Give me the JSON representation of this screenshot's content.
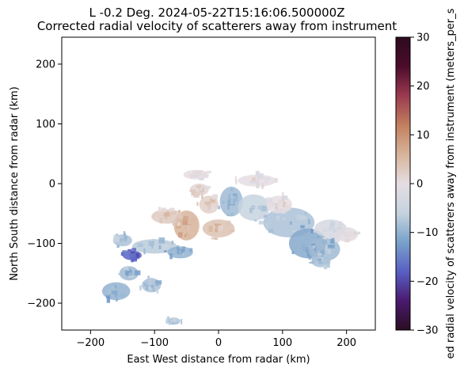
{
  "chart_data": {
    "type": "heatmap",
    "title": "L -0.2 Deg. 2024-05-22T15:16:06.500000Z",
    "subtitle": "Corrected radial velocity of scatterers away from instrument",
    "xlabel": "East West distance from radar (km)",
    "ylabel": "North South distance from radar (km)",
    "xlim": [
      -245,
      245
    ],
    "ylim": [
      -245,
      245
    ],
    "xticks": [
      -200,
      -100,
      0,
      100,
      200
    ],
    "yticks": [
      -200,
      -100,
      0,
      100,
      200
    ],
    "grid": false,
    "colorbar": {
      "label": "ed radial velocity of scatterers away from instrument (meters_per_s",
      "range": [
        -30,
        30
      ],
      "ticks": [
        -30,
        -20,
        -10,
        0,
        10,
        20,
        30
      ],
      "colormap": "balance",
      "stops": [
        "#2a0d22",
        "#4a1a6e",
        "#5960c4",
        "#79a1c9",
        "#c5d3df",
        "#e5dde2",
        "#d7b49a",
        "#c27f5f",
        "#9b3a50",
        "#4b0c2b",
        "#2d0a1f"
      ]
    },
    "regions": [
      {
        "x": 20,
        "y": -30,
        "rx": 18,
        "ry": 25,
        "v": -9
      },
      {
        "x": 55,
        "y": -40,
        "rx": 25,
        "ry": 22,
        "v": -6
      },
      {
        "x": 110,
        "y": -65,
        "rx": 40,
        "ry": 25,
        "v": -8
      },
      {
        "x": 140,
        "y": -100,
        "rx": 30,
        "ry": 25,
        "v": -11
      },
      {
        "x": 165,
        "y": -110,
        "rx": 25,
        "ry": 20,
        "v": -9
      },
      {
        "x": 175,
        "y": -75,
        "rx": 25,
        "ry": 15,
        "v": -3
      },
      {
        "x": 200,
        "y": -85,
        "rx": 18,
        "ry": 12,
        "v": -1
      },
      {
        "x": 95,
        "y": -35,
        "rx": 20,
        "ry": 15,
        "v": 0
      },
      {
        "x": -50,
        "y": -70,
        "rx": 20,
        "ry": 25,
        "v": 6
      },
      {
        "x": -80,
        "y": -55,
        "rx": 25,
        "ry": 12,
        "v": 3
      },
      {
        "x": 0,
        "y": -75,
        "rx": 25,
        "ry": 15,
        "v": 4
      },
      {
        "x": -15,
        "y": -35,
        "rx": 15,
        "ry": 15,
        "v": 2
      },
      {
        "x": -100,
        "y": -105,
        "rx": 35,
        "ry": 12,
        "v": -7
      },
      {
        "x": -60,
        "y": -115,
        "rx": 20,
        "ry": 10,
        "v": -10
      },
      {
        "x": -135,
        "y": -120,
        "rx": 15,
        "ry": 8,
        "v": -18
      },
      {
        "x": -150,
        "y": -95,
        "rx": 15,
        "ry": 10,
        "v": -8
      },
      {
        "x": -140,
        "y": -150,
        "rx": 15,
        "ry": 12,
        "v": -9
      },
      {
        "x": -160,
        "y": -180,
        "rx": 22,
        "ry": 15,
        "v": -10
      },
      {
        "x": -105,
        "y": -170,
        "rx": 15,
        "ry": 12,
        "v": -8
      },
      {
        "x": -70,
        "y": -230,
        "rx": 10,
        "ry": 6,
        "v": -8
      },
      {
        "x": 160,
        "y": -130,
        "rx": 15,
        "ry": 10,
        "v": -8
      },
      {
        "x": -30,
        "y": -10,
        "rx": 15,
        "ry": 10,
        "v": 1
      },
      {
        "x": 60,
        "y": 5,
        "rx": 30,
        "ry": 10,
        "v": 0
      },
      {
        "x": -35,
        "y": 15,
        "rx": 20,
        "ry": 8,
        "v": 0
      }
    ]
  }
}
